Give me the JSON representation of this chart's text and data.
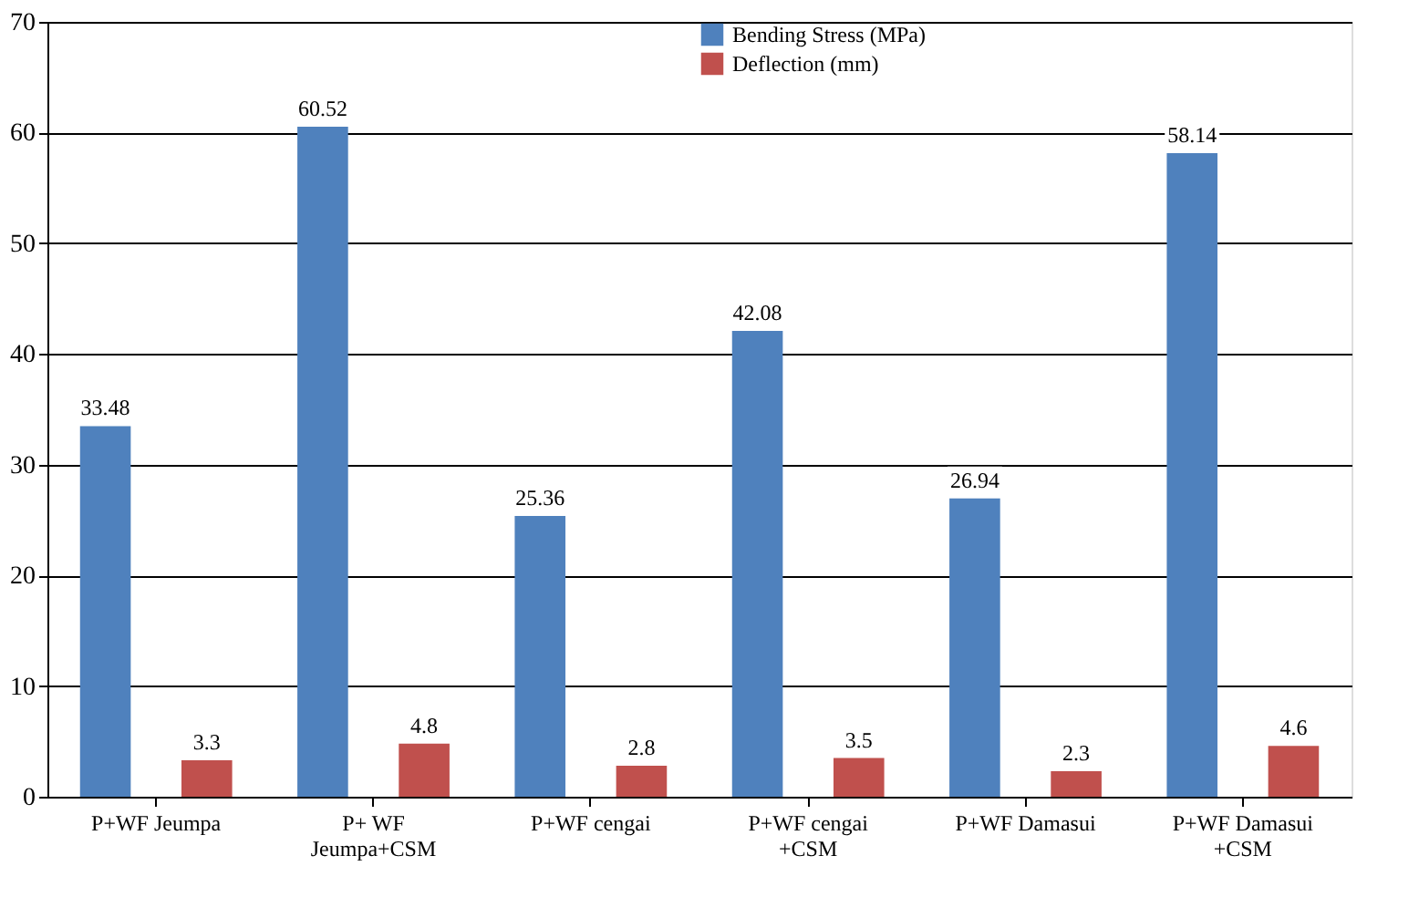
{
  "chart_data": {
    "type": "bar",
    "categories": [
      "P+WF Jeumpa",
      "P+ WF\nJeumpa+CSM",
      "P+WF cengai",
      "P+WF cengai\n+CSM",
      "P+WF Damasui",
      "P+WF Damasui\n+CSM"
    ],
    "series": [
      {
        "name": "Bending Stress (MPa)",
        "color": "#4f81bd",
        "values": [
          33.48,
          60.52,
          25.36,
          42.08,
          26.94,
          58.14
        ]
      },
      {
        "name": "Deflection (mm)",
        "color": "#c0504d",
        "values": [
          3.3,
          4.8,
          2.8,
          3.5,
          2.3,
          4.6
        ]
      }
    ],
    "ylim": [
      0,
      70
    ],
    "yticks": [
      0,
      10,
      20,
      30,
      40,
      50,
      60,
      70
    ],
    "grid": "y",
    "legend": "top",
    "data_labels": true
  }
}
